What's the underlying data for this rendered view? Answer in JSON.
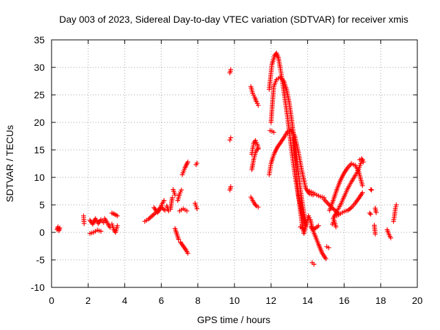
{
  "chart_data": {
    "type": "scatter",
    "title": "Day 003 of 2023, Sidereal Day-to-day VTEC variation (SDTVAR) for receiver xmis",
    "xlabel": "GPS time / hours",
    "ylabel": "SDTVAR / TECUs",
    "xlim": [
      0,
      20
    ],
    "ylim": [
      -10,
      35
    ],
    "xticks": [
      0,
      2,
      4,
      6,
      8,
      10,
      12,
      14,
      16,
      18,
      20
    ],
    "yticks": [
      -10,
      -5,
      0,
      5,
      10,
      15,
      20,
      25,
      30,
      35
    ],
    "grid": true,
    "marker": "+",
    "color": "#ff0000",
    "series": [
      {
        "name": "t0a",
        "x": [
          0.3,
          0.35,
          0.4,
          0.45
        ],
        "y": [
          0.5,
          1.0,
          0.3,
          0.8
        ]
      },
      {
        "name": "t0b",
        "x": [
          1.75,
          1.78
        ],
        "y": [
          3.0,
          1.6
        ]
      },
      {
        "name": "t1a",
        "x": [
          2.1,
          2.25,
          2.4,
          2.55,
          2.7,
          2.85
        ],
        "y": [
          2.2,
          1.5,
          2.5,
          1.6,
          2.3,
          1.8
        ]
      },
      {
        "name": "t1b",
        "x": [
          2.1,
          2.3,
          2.5,
          2.7
        ],
        "y": [
          -0.2,
          0.0,
          0.4,
          0.2
        ]
      },
      {
        "name": "t1c",
        "x": [
          2.9,
          3.0,
          3.1,
          3.2
        ],
        "y": [
          2.5,
          2.0,
          1.4,
          0.9
        ]
      },
      {
        "name": "t1d",
        "x": [
          3.3,
          3.45,
          3.6
        ],
        "y": [
          3.5,
          3.3,
          3.0
        ]
      },
      {
        "name": "t1e",
        "x": [
          3.3,
          3.4,
          3.5,
          3.6
        ],
        "y": [
          1.5,
          0.5,
          0.0,
          1.2
        ]
      },
      {
        "name": "t2a",
        "x": [
          5.1,
          5.3,
          5.5,
          5.7,
          5.9,
          6.05,
          6.15
        ],
        "y": [
          2.0,
          2.4,
          3.0,
          3.6,
          4.3,
          5.2,
          5.8
        ]
      },
      {
        "name": "t2b",
        "x": [
          5.6,
          5.8,
          6.0,
          6.2
        ],
        "y": [
          4.5,
          3.6,
          4.6,
          4.0
        ]
      },
      {
        "name": "t2c",
        "x": [
          6.3,
          6.4,
          6.5,
          6.6
        ],
        "y": [
          4.8,
          3.9,
          4.2,
          6.3
        ]
      },
      {
        "name": "t2d",
        "x": [
          6.65,
          6.75
        ],
        "y": [
          7.8,
          6.8
        ]
      },
      {
        "name": "t2e",
        "x": [
          6.9,
          7.0,
          7.1
        ],
        "y": [
          5.8,
          7.0,
          7.7
        ]
      },
      {
        "name": "t2f",
        "x": [
          7.0,
          7.2,
          7.4
        ],
        "y": [
          3.9,
          4.3,
          3.9
        ]
      },
      {
        "name": "t2g",
        "x": [
          7.15,
          7.3,
          7.45
        ],
        "y": [
          10.5,
          11.8,
          12.8
        ]
      },
      {
        "name": "t2h",
        "x": [
          7.05,
          7.2,
          7.35,
          7.45
        ],
        "y": [
          -1.8,
          -2.5,
          -3.2,
          -3.8
        ]
      },
      {
        "name": "t2i",
        "x": [
          6.75,
          6.95
        ],
        "y": [
          0.7,
          -1.3
        ]
      },
      {
        "name": "t2j",
        "x": [
          7.9,
          7.95
        ],
        "y": [
          12.3,
          12.6
        ]
      },
      {
        "name": "t2k",
        "x": [
          7.85,
          7.95
        ],
        "y": [
          5.3,
          4.3
        ]
      },
      {
        "name": "t3a",
        "x": [
          9.75,
          9.8
        ],
        "y": [
          29.0,
          29.6
        ]
      },
      {
        "name": "t3b",
        "x": [
          9.75,
          9.8
        ],
        "y": [
          16.8,
          17.2
        ]
      },
      {
        "name": "t3c",
        "x": [
          9.75,
          9.8
        ],
        "y": [
          7.7,
          8.3
        ]
      },
      {
        "name": "t4a",
        "x": [
          10.9,
          11.0,
          11.1,
          11.2,
          11.3
        ],
        "y": [
          26.5,
          25.3,
          24.6,
          23.8,
          23.1
        ]
      },
      {
        "name": "t4b",
        "x": [
          10.95,
          11.05,
          11.15,
          11.25,
          11.3
        ],
        "y": [
          14.2,
          16.2,
          16.7,
          16.0,
          15.4
        ]
      },
      {
        "name": "t4c",
        "x": [
          10.95,
          11.05,
          11.15,
          11.25,
          11.3
        ],
        "y": [
          11.4,
          13.2,
          14.5,
          15.1,
          15.2
        ]
      },
      {
        "name": "t4d",
        "x": [
          10.9,
          11.0,
          11.1,
          11.2,
          11.3
        ],
        "y": [
          6.4,
          5.8,
          5.2,
          4.8,
          4.6
        ]
      },
      {
        "name": "t5a",
        "x": [
          11.9,
          12.05,
          12.2,
          12.3,
          12.4,
          12.5,
          12.6,
          12.75,
          12.9,
          13.05,
          13.2,
          13.35,
          13.5,
          13.7,
          13.9
        ],
        "y": [
          26.0,
          30.5,
          32.2,
          32.6,
          31.8,
          30.0,
          28.0,
          24.5,
          21.0,
          17.0,
          13.0,
          9.5,
          6.5,
          3.5,
          1.0
        ]
      },
      {
        "name": "t5b",
        "x": [
          12.0,
          12.15,
          12.3,
          12.5,
          12.7,
          12.85,
          13.0,
          13.15,
          13.3,
          13.45,
          13.6,
          13.75,
          13.9
        ],
        "y": [
          20.0,
          26.5,
          27.8,
          28.2,
          27.5,
          26.0,
          23.5,
          20.0,
          16.0,
          12.0,
          8.0,
          4.5,
          1.5
        ]
      },
      {
        "name": "t5c",
        "x": [
          11.9,
          12.0,
          12.1,
          12.2,
          12.35,
          12.5,
          12.7,
          12.9,
          13.1,
          13.3,
          13.5,
          13.7,
          13.9,
          14.1,
          14.3
        ],
        "y": [
          10.5,
          12.5,
          13.6,
          14.5,
          15.5,
          16.2,
          17.2,
          18.3,
          18.7,
          17.5,
          14.5,
          11.0,
          8.0,
          7.0,
          6.8
        ]
      },
      {
        "name": "t5d",
        "x": [
          11.95,
          12.05,
          12.15
        ],
        "y": [
          18.5,
          18.4,
          18.2
        ]
      },
      {
        "name": "t5e",
        "x": [
          13.2,
          13.3,
          13.4,
          13.5,
          13.6,
          13.7,
          13.8,
          13.95,
          14.05,
          14.15,
          14.25
        ],
        "y": [
          17.0,
          14.0,
          10.5,
          7.0,
          4.0,
          1.5,
          -0.2,
          1.8,
          3.0,
          2.3,
          0.9
        ]
      },
      {
        "name": "t5f",
        "x": [
          13.6,
          13.7,
          13.8
        ],
        "y": [
          1.0,
          0.8,
          0.6
        ]
      },
      {
        "name": "t6a",
        "x": [
          14.1,
          14.3,
          14.5,
          14.7,
          14.9
        ],
        "y": [
          7.5,
          7.2,
          6.8,
          6.5,
          6.3
        ]
      },
      {
        "name": "t6b",
        "x": [
          14.2,
          14.4,
          14.6,
          14.8,
          15.0
        ],
        "y": [
          1.0,
          -0.5,
          -2.2,
          -3.8,
          -4.8
        ]
      },
      {
        "name": "t6c",
        "x": [
          14.3,
          14.45,
          14.6
        ],
        "y": [
          0.5,
          0.8,
          1.2
        ]
      },
      {
        "name": "t6d",
        "x": [
          14.25,
          14.35
        ],
        "y": [
          -5.5,
          -5.8
        ]
      },
      {
        "name": "t6e",
        "x": [
          15.05,
          15.15
        ],
        "y": [
          -2.6,
          -2.8
        ]
      },
      {
        "name": "t6f",
        "x": [
          14.9,
          15.1,
          15.3,
          15.5,
          15.7
        ],
        "y": [
          6.0,
          5.3,
          4.6,
          4.0,
          3.4
        ]
      },
      {
        "name": "t7a",
        "x": [
          15.2,
          15.4,
          15.6,
          15.8,
          16.0,
          16.2,
          16.4,
          16.6,
          16.8,
          17.0
        ],
        "y": [
          4.0,
          5.8,
          7.8,
          9.5,
          10.8,
          11.8,
          12.5,
          12.2,
          11.0,
          8.5
        ]
      },
      {
        "name": "t7b",
        "x": [
          15.4,
          15.6,
          15.8,
          16.0,
          16.2,
          16.4,
          16.6,
          16.8,
          16.9,
          17.0
        ],
        "y": [
          2.5,
          3.8,
          5.0,
          6.5,
          8.0,
          9.2,
          10.3,
          11.5,
          12.5,
          13.2
        ]
      },
      {
        "name": "t7c",
        "x": [
          15.6,
          15.8,
          16.0,
          16.2,
          16.4,
          16.6,
          16.8,
          17.0
        ],
        "y": [
          3.0,
          3.4,
          3.8,
          4.0,
          4.5,
          5.3,
          6.2,
          7.2
        ]
      },
      {
        "name": "t7d",
        "x": [
          16.85,
          16.95,
          17.05
        ],
        "y": [
          13.2,
          13.4,
          12.8
        ]
      },
      {
        "name": "t7e",
        "x": [
          15.35,
          15.45,
          15.55
        ],
        "y": [
          1.5,
          2.2,
          1.0
        ]
      },
      {
        "name": "t8a",
        "x": [
          17.45,
          17.5
        ],
        "y": [
          7.8,
          7.7
        ]
      },
      {
        "name": "t8b",
        "x": [
          17.4,
          17.45
        ],
        "y": [
          3.5,
          3.3
        ]
      },
      {
        "name": "t8c",
        "x": [
          17.7,
          17.75
        ],
        "y": [
          4.4,
          3.6
        ]
      },
      {
        "name": "t8d",
        "x": [
          17.65,
          17.7
        ],
        "y": [
          1.3,
          -0.3
        ]
      },
      {
        "name": "t8e",
        "x": [
          18.35,
          18.45,
          18.55
        ],
        "y": [
          0.5,
          -0.4,
          -1.0
        ]
      },
      {
        "name": "t8f",
        "x": [
          18.7,
          18.75,
          18.8,
          18.85
        ],
        "y": [
          2.0,
          3.0,
          4.3,
          5.0
        ]
      }
    ]
  }
}
